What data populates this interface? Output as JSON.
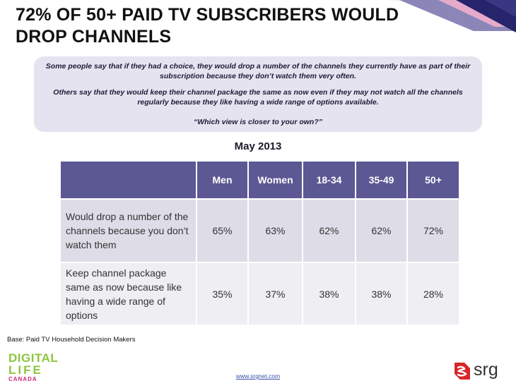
{
  "slide": {
    "title": "72% OF 50+ PAID TV SUBSCRIBERS WOULD DROP CHANNELS",
    "question": {
      "line1": "Some people say that if they had a choice, they would drop a number of the channels they currently have as part of their subscription because they don’t watch them very often.",
      "line2": "Others say that they would keep their channel package the same as now even if they may not watch all the channels regularly because they like having a wide range of options available.",
      "line3": "“Which view is closer to your own?”"
    },
    "base_note": "Base: Paid TV Household Decision Makers",
    "link": "www.srgnet.com",
    "logo_left": {
      "line1": "DIGITAL",
      "line2": "LIFE",
      "line3": "CANADA"
    },
    "logo_right": {
      "text": "srg"
    },
    "colors": {
      "header": "#5b5893",
      "row_a": "#dedde7",
      "row_b": "#eeeef3",
      "accent_green": "#8dc63f",
      "accent_pink": "#d12a7c",
      "accent_red": "#d7262b"
    }
  },
  "chart_data": {
    "type": "table",
    "title": "May 2013",
    "columns": [
      "Men",
      "Women",
      "18-34",
      "35-49",
      "50+"
    ],
    "rows": [
      {
        "label": "Would drop a number of the channels because you don’t watch them",
        "values": [
          "65%",
          "63%",
          "62%",
          "62%",
          "72%"
        ]
      },
      {
        "label": "Keep channel package same as now because like having a wide range of options",
        "values": [
          "35%",
          "37%",
          "38%",
          "38%",
          "28%"
        ]
      }
    ]
  }
}
